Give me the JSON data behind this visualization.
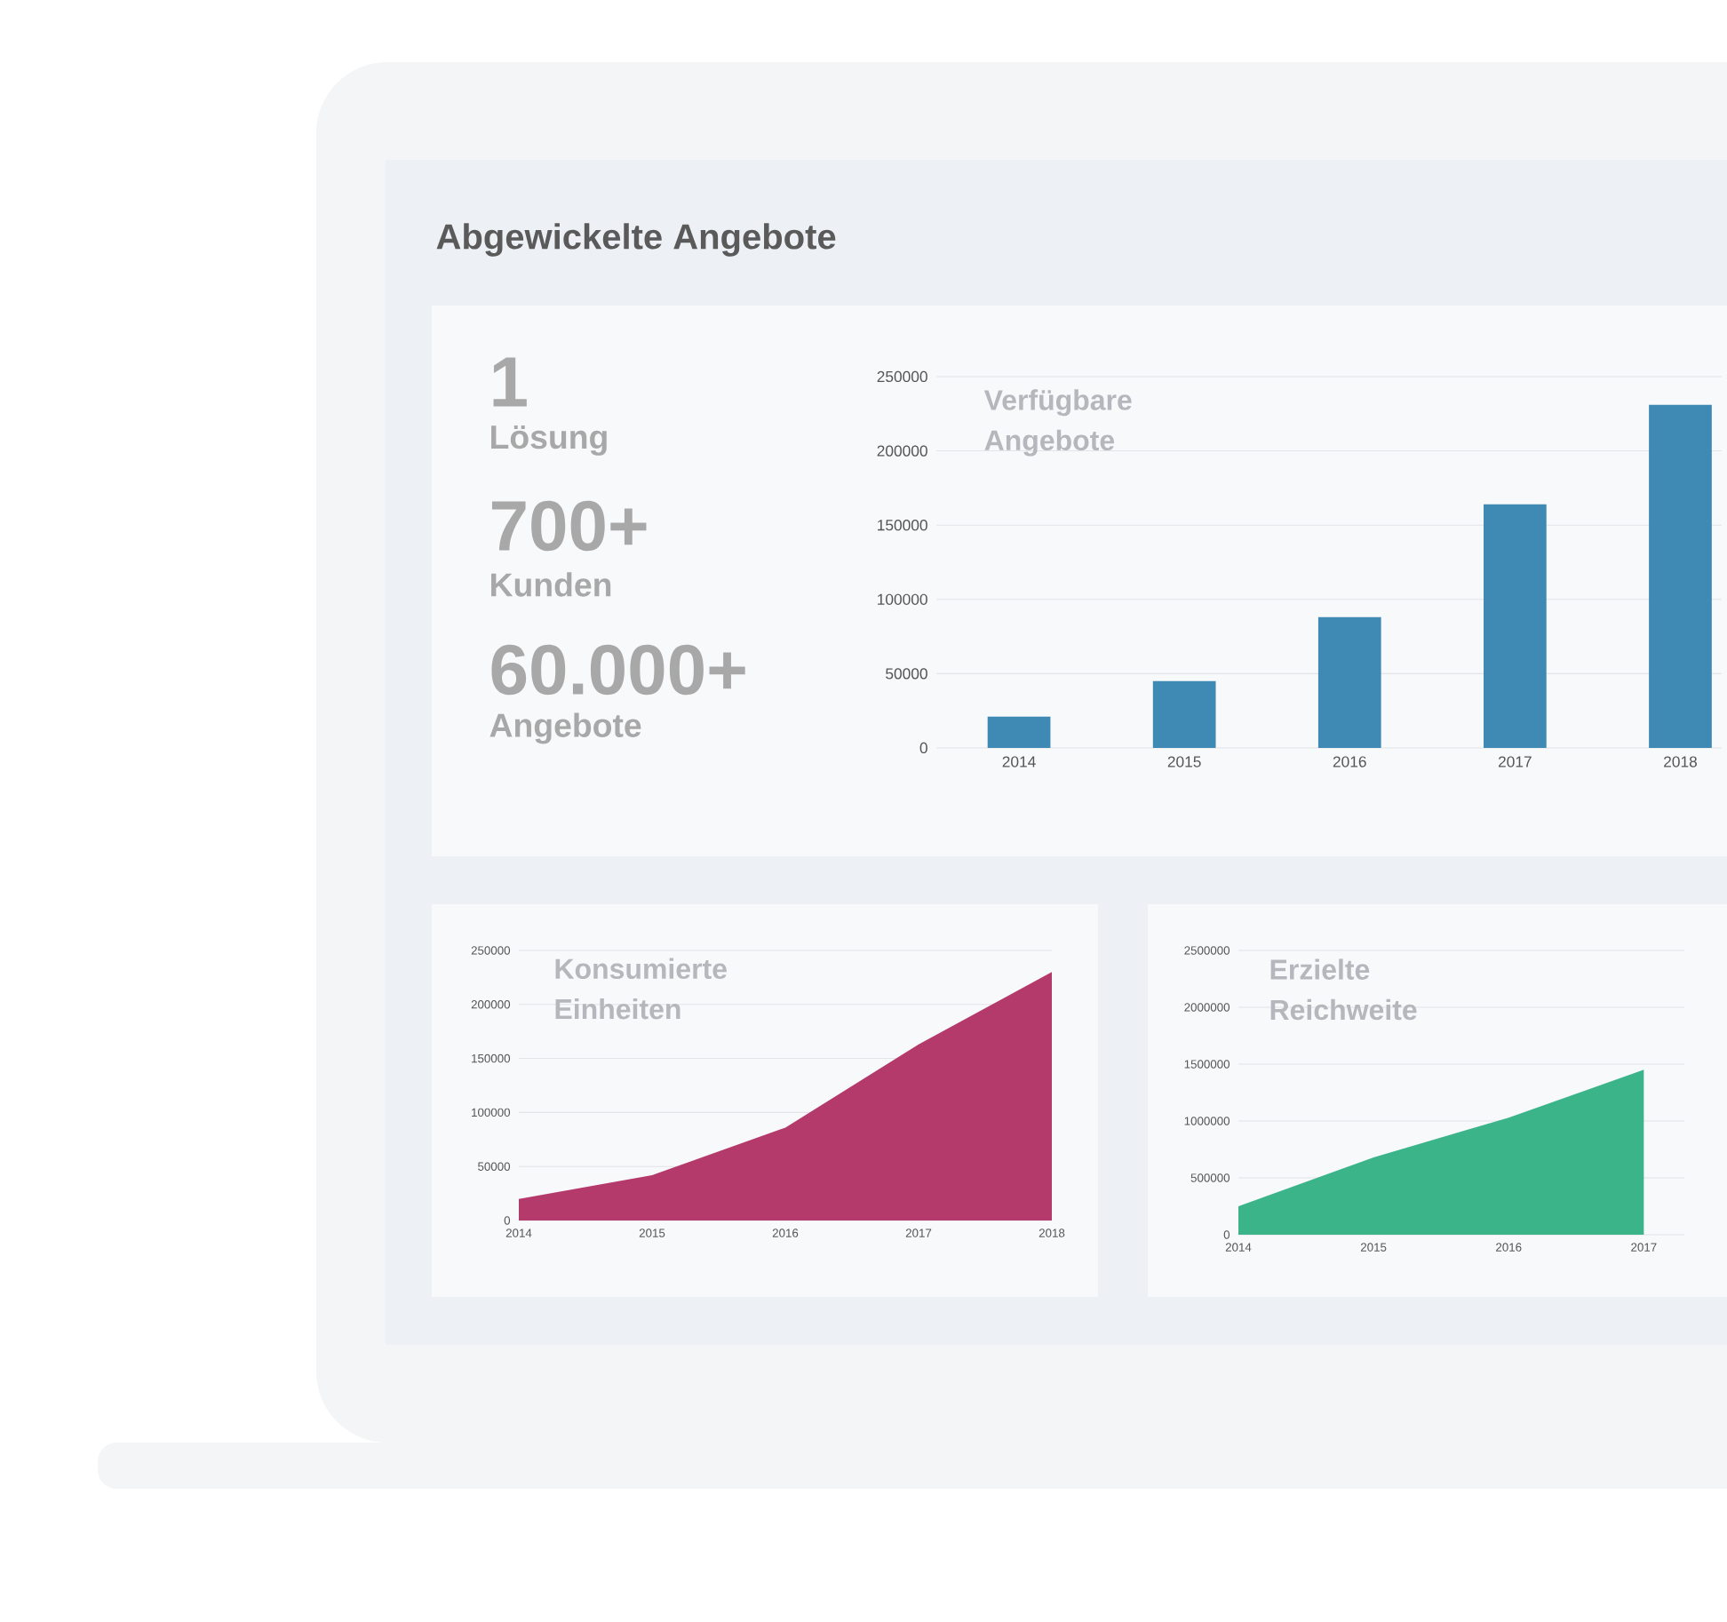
{
  "chart_data": [
    {
      "type": "other",
      "title": "Abgewickelte Angebote",
      "annotations": [
        "1",
        "Lösung",
        "700+",
        "Kunden",
        "60.000+",
        "Angebote"
      ]
    },
    {
      "type": "bar",
      "title": "Verfügbare Angebote",
      "categories": [
        "2014",
        "2015",
        "2016",
        "2017",
        "2018"
      ],
      "values": [
        21000,
        45000,
        88000,
        164000,
        231000
      ],
      "color": "#3f8ab4",
      "ylim": [
        0,
        250000
      ],
      "yticks": [
        0,
        50000,
        100000,
        150000,
        200000,
        250000
      ],
      "grid": "y"
    },
    {
      "type": "area",
      "title": "Konsumierte Einheiten",
      "categories": [
        "2014",
        "2015",
        "2016",
        "2017",
        "2018"
      ],
      "values": [
        20000,
        42000,
        86000,
        163000,
        230000
      ],
      "color": "#b43a6c",
      "ylim": [
        0,
        250000
      ],
      "yticks": [
        0,
        50000,
        100000,
        150000,
        200000,
        250000
      ],
      "grid": "y"
    },
    {
      "type": "area",
      "title": "Erzielte Reichweite",
      "categories": [
        "2014",
        "2015",
        "2016",
        "2017"
      ],
      "values": [
        250000,
        680000,
        1030000,
        1450000
      ],
      "color": "#3bb48a",
      "ylim": [
        0,
        2500000
      ],
      "yticks": [
        0,
        500000,
        1000000,
        1500000,
        2000000,
        2500000
      ],
      "grid": "y"
    }
  ]
}
